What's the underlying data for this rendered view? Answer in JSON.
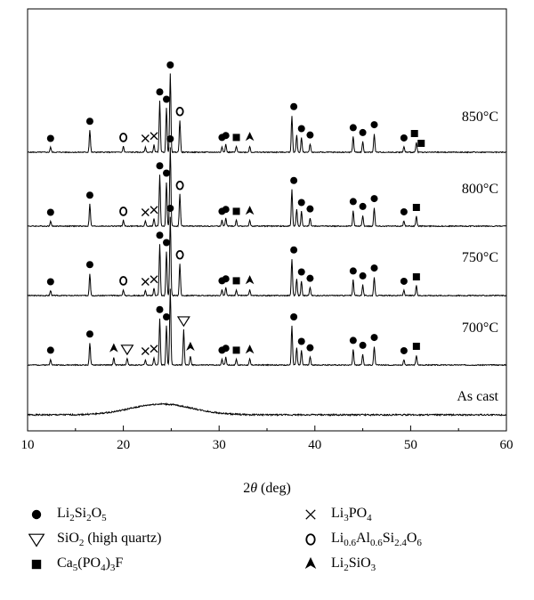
{
  "chart_data": {
    "type": "line",
    "xlabel_main": "2",
    "xlabel_theta": "θ",
    "xlabel_unit": " (deg)",
    "ylabel": "",
    "xlim": [
      10,
      60
    ],
    "xticks": [
      "10",
      "20",
      "30",
      "40",
      "50",
      "60"
    ],
    "grid": false,
    "series": [
      {
        "name": "As cast",
        "type": "amorphous",
        "hump_center": 24,
        "hump_width": 4.5,
        "hump_height": 0.22
      },
      {
        "name": "700°C",
        "peaks": [
          [
            12.4,
            0.12
          ],
          [
            16.5,
            0.45
          ],
          [
            19.0,
            0.15
          ],
          [
            20.4,
            0.14
          ],
          [
            22.3,
            0.1
          ],
          [
            23.2,
            0.15
          ],
          [
            23.8,
            0.95
          ],
          [
            24.5,
            0.8
          ],
          [
            24.9,
            1.55
          ],
          [
            26.3,
            0.72
          ],
          [
            27.0,
            0.18
          ],
          [
            30.3,
            0.12
          ],
          [
            30.7,
            0.16
          ],
          [
            31.8,
            0.12
          ],
          [
            33.2,
            0.12
          ],
          [
            37.6,
            0.8
          ],
          [
            38.1,
            0.35
          ],
          [
            38.6,
            0.3
          ],
          [
            39.5,
            0.17
          ],
          [
            44.0,
            0.32
          ],
          [
            45.0,
            0.22
          ],
          [
            46.2,
            0.38
          ],
          [
            49.3,
            0.11
          ],
          [
            50.6,
            0.2
          ]
        ],
        "markers": [
          [
            12.4,
            "Li2Si2O5"
          ],
          [
            16.5,
            "Li2Si2O5"
          ],
          [
            19.0,
            "Li2SiO3"
          ],
          [
            20.4,
            "SiO2"
          ],
          [
            22.3,
            "Li3PO4"
          ],
          [
            23.2,
            "Li3PO4"
          ],
          [
            23.8,
            "Li2Si2O5"
          ],
          [
            24.5,
            "Li2Si2O5"
          ],
          [
            26.3,
            "SiO2"
          ],
          [
            27.0,
            "Li2SiO3"
          ],
          [
            30.3,
            "Li2Si2O5"
          ],
          [
            30.7,
            "Li2Si2O5"
          ],
          [
            31.8,
            "Ca5PO43F"
          ],
          [
            33.2,
            "Li2SiO3"
          ],
          [
            37.8,
            "Li2Si2O5"
          ],
          [
            38.6,
            "Li2Si2O5"
          ],
          [
            39.5,
            "Li2Si2O5"
          ],
          [
            44.0,
            "Li2Si2O5"
          ],
          [
            45.0,
            "Li2Si2O5"
          ],
          [
            46.2,
            "Li2Si2O5"
          ],
          [
            49.3,
            "Li2Si2O5"
          ],
          [
            50.6,
            "Ca5PO43F"
          ]
        ]
      },
      {
        "name": "750°C",
        "peaks": [
          [
            12.4,
            0.1
          ],
          [
            16.5,
            0.45
          ],
          [
            20.0,
            0.12
          ],
          [
            22.3,
            0.1
          ],
          [
            23.2,
            0.15
          ],
          [
            23.8,
            1.05
          ],
          [
            24.5,
            0.9
          ],
          [
            24.9,
            1.6
          ],
          [
            25.9,
            0.65
          ],
          [
            30.3,
            0.12
          ],
          [
            30.7,
            0.16
          ],
          [
            31.8,
            0.12
          ],
          [
            33.2,
            0.12
          ],
          [
            37.6,
            0.75
          ],
          [
            38.1,
            0.35
          ],
          [
            38.6,
            0.3
          ],
          [
            39.5,
            0.17
          ],
          [
            44.0,
            0.32
          ],
          [
            45.0,
            0.22
          ],
          [
            46.2,
            0.38
          ],
          [
            49.3,
            0.11
          ],
          [
            50.6,
            0.2
          ]
        ],
        "markers": [
          [
            12.4,
            "Li2Si2O5"
          ],
          [
            16.5,
            "Li2Si2O5"
          ],
          [
            20.0,
            "Li06Al06Si24O6"
          ],
          [
            22.3,
            "Li3PO4"
          ],
          [
            23.2,
            "Li3PO4"
          ],
          [
            23.8,
            "Li2Si2O5"
          ],
          [
            24.5,
            "Li2Si2O5"
          ],
          [
            24.9,
            "Li2Si2O5"
          ],
          [
            25.9,
            "Li06Al06Si24O6"
          ],
          [
            30.3,
            "Li2Si2O5"
          ],
          [
            30.7,
            "Li2Si2O5"
          ],
          [
            31.8,
            "Ca5PO43F"
          ],
          [
            33.2,
            "Li2SiO3"
          ],
          [
            37.8,
            "Li2Si2O5"
          ],
          [
            38.6,
            "Li2Si2O5"
          ],
          [
            39.5,
            "Li2Si2O5"
          ],
          [
            44.0,
            "Li2Si2O5"
          ],
          [
            45.0,
            "Li2Si2O5"
          ],
          [
            46.2,
            "Li2Si2O5"
          ],
          [
            49.3,
            "Li2Si2O5"
          ],
          [
            50.6,
            "Ca5PO43F"
          ]
        ]
      },
      {
        "name": "800°C",
        "peaks": [
          [
            12.4,
            0.1
          ],
          [
            16.5,
            0.45
          ],
          [
            20.0,
            0.12
          ],
          [
            22.3,
            0.1
          ],
          [
            23.2,
            0.15
          ],
          [
            23.8,
            1.05
          ],
          [
            24.5,
            0.9
          ],
          [
            24.9,
            1.6
          ],
          [
            25.9,
            0.65
          ],
          [
            30.3,
            0.12
          ],
          [
            30.7,
            0.16
          ],
          [
            31.8,
            0.12
          ],
          [
            33.2,
            0.12
          ],
          [
            37.6,
            0.75
          ],
          [
            38.1,
            0.35
          ],
          [
            38.6,
            0.3
          ],
          [
            39.5,
            0.17
          ],
          [
            44.0,
            0.32
          ],
          [
            45.0,
            0.22
          ],
          [
            46.2,
            0.38
          ],
          [
            49.3,
            0.11
          ],
          [
            50.6,
            0.2
          ]
        ],
        "markers": [
          [
            12.4,
            "Li2Si2O5"
          ],
          [
            16.5,
            "Li2Si2O5"
          ],
          [
            20.0,
            "Li06Al06Si24O6"
          ],
          [
            22.3,
            "Li3PO4"
          ],
          [
            23.2,
            "Li3PO4"
          ],
          [
            23.8,
            "Li2Si2O5"
          ],
          [
            24.5,
            "Li2Si2O5"
          ],
          [
            24.9,
            "Li2Si2O5"
          ],
          [
            25.9,
            "Li06Al06Si24O6"
          ],
          [
            30.3,
            "Li2Si2O5"
          ],
          [
            30.7,
            "Li2Si2O5"
          ],
          [
            31.8,
            "Ca5PO43F"
          ],
          [
            33.2,
            "Li2SiO3"
          ],
          [
            37.8,
            "Li2Si2O5"
          ],
          [
            38.6,
            "Li2Si2O5"
          ],
          [
            39.5,
            "Li2Si2O5"
          ],
          [
            44.0,
            "Li2Si2O5"
          ],
          [
            45.0,
            "Li2Si2O5"
          ],
          [
            46.2,
            "Li2Si2O5"
          ],
          [
            49.3,
            "Li2Si2O5"
          ],
          [
            50.6,
            "Ca5PO43F"
          ]
        ]
      },
      {
        "name": "850°C",
        "peaks": [
          [
            12.4,
            0.1
          ],
          [
            16.5,
            0.45
          ],
          [
            20.0,
            0.12
          ],
          [
            22.3,
            0.1
          ],
          [
            23.2,
            0.15
          ],
          [
            23.8,
            1.05
          ],
          [
            24.5,
            0.9
          ],
          [
            24.9,
            1.6
          ],
          [
            25.9,
            0.65
          ],
          [
            30.3,
            0.12
          ],
          [
            30.7,
            0.16
          ],
          [
            31.8,
            0.12
          ],
          [
            33.2,
            0.12
          ],
          [
            37.6,
            0.75
          ],
          [
            38.1,
            0.35
          ],
          [
            38.6,
            0.3
          ],
          [
            39.5,
            0.17
          ],
          [
            44.0,
            0.32
          ],
          [
            45.0,
            0.22
          ],
          [
            46.2,
            0.38
          ],
          [
            49.3,
            0.11
          ],
          [
            50.6,
            0.2
          ]
        ],
        "markers": [
          [
            12.4,
            "Li2Si2O5"
          ],
          [
            16.5,
            "Li2Si2O5"
          ],
          [
            20.0,
            "Li06Al06Si24O6"
          ],
          [
            22.3,
            "Li3PO4"
          ],
          [
            23.2,
            "Li3PO4"
          ],
          [
            23.8,
            "Li2Si2O5"
          ],
          [
            24.5,
            "Li2Si2O5"
          ],
          [
            24.9,
            "Li2Si2O5"
          ],
          [
            25.9,
            "Li06Al06Si24O6"
          ],
          [
            30.3,
            "Li2Si2O5"
          ],
          [
            30.7,
            "Li2Si2O5"
          ],
          [
            31.8,
            "Ca5PO43F"
          ],
          [
            33.2,
            "Li2SiO3"
          ],
          [
            37.8,
            "Li2Si2O5"
          ],
          [
            38.6,
            "Li2Si2O5"
          ],
          [
            39.5,
            "Li2Si2O5"
          ],
          [
            44.0,
            "Li2Si2O5"
          ],
          [
            45.0,
            "Li2Si2O5"
          ],
          [
            46.2,
            "Li2Si2O5"
          ],
          [
            49.3,
            "Li2Si2O5"
          ],
          [
            50.4,
            "Ca5PO43F"
          ],
          [
            51.1,
            "Ca5PO43F"
          ]
        ]
      }
    ],
    "legend": [
      {
        "key": "Li2Si2O5",
        "symbol": "filled-circle",
        "parts": [
          [
            "Li",
            ""
          ],
          [
            "2",
            "sub"
          ],
          [
            "Si",
            ""
          ],
          [
            "2",
            "sub"
          ],
          [
            "O",
            ""
          ],
          [
            "5",
            "sub"
          ]
        ]
      },
      {
        "key": "SiO2",
        "symbol": "open-down-triangle",
        "parts": [
          [
            "SiO",
            ""
          ],
          [
            "2",
            "sub"
          ],
          [
            " (high quartz)",
            ""
          ]
        ]
      },
      {
        "key": "Ca5PO43F",
        "symbol": "filled-square",
        "parts": [
          [
            "Ca",
            ""
          ],
          [
            "5",
            "sub"
          ],
          [
            "(PO",
            ""
          ],
          [
            "4",
            "sub"
          ],
          [
            ")",
            ""
          ],
          [
            "3",
            "sub"
          ],
          [
            "F",
            ""
          ]
        ]
      },
      {
        "key": "Li3PO4",
        "symbol": "cross",
        "parts": [
          [
            "Li",
            ""
          ],
          [
            "3",
            "sub"
          ],
          [
            "PO",
            ""
          ],
          [
            "4",
            "sub"
          ]
        ]
      },
      {
        "key": "Li06Al06Si24O6",
        "symbol": "open-circle",
        "parts": [
          [
            "Li",
            ""
          ],
          [
            "0.6",
            "sub"
          ],
          [
            "Al",
            ""
          ],
          [
            "0.6",
            "sub"
          ],
          [
            "Si",
            ""
          ],
          [
            "2.4",
            "sub"
          ],
          [
            "O",
            ""
          ],
          [
            "6",
            "sub"
          ]
        ]
      },
      {
        "key": "Li2SiO3",
        "symbol": "filled-triangle",
        "parts": [
          [
            "Li",
            ""
          ],
          [
            "2",
            "sub"
          ],
          [
            "SiO",
            ""
          ],
          [
            "3",
            "sub"
          ]
        ]
      }
    ]
  }
}
